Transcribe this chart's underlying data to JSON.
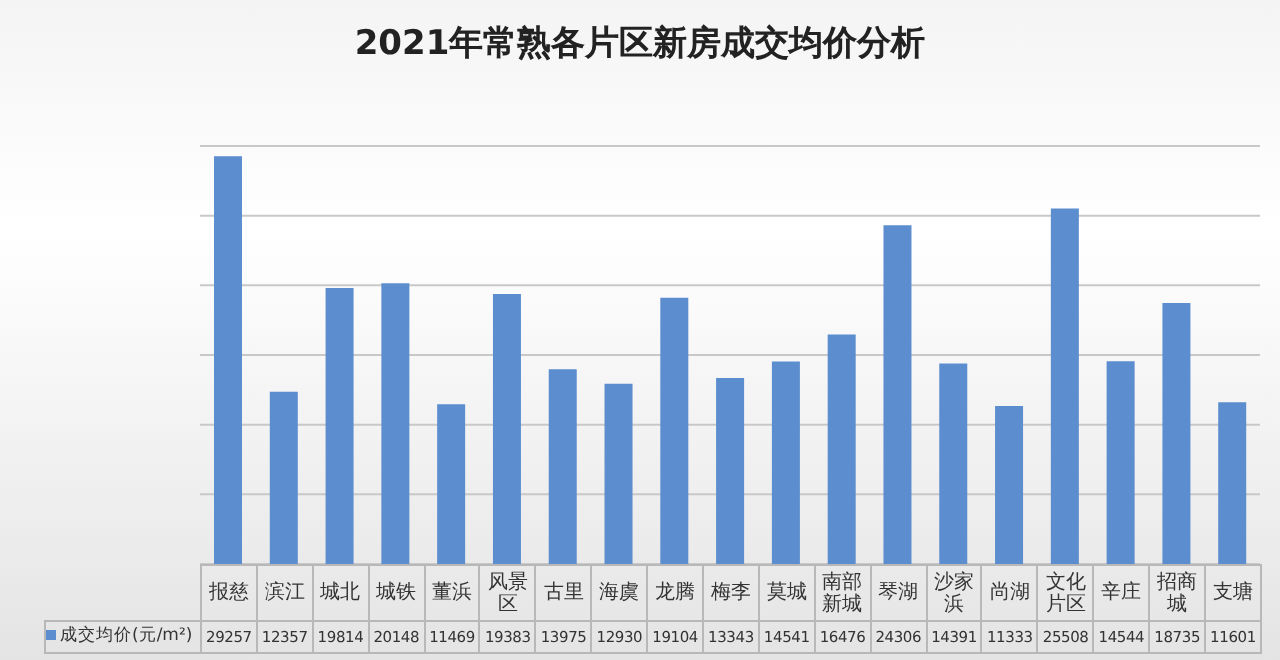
{
  "chart_data": {
    "type": "bar",
    "title": "2021年常熟各片区新房成交均价分析",
    "categories": [
      "报慈",
      "滨江",
      "城北",
      "城铁",
      "董浜",
      "风景区",
      "古里",
      "海虞",
      "龙腾",
      "梅李",
      "莫城",
      "南部新城",
      "琴湖",
      "沙家浜",
      "尚湖",
      "文化片区",
      "辛庄",
      "招商城",
      "支塘"
    ],
    "series": [
      {
        "name": "成交均价(元/m²)",
        "color": "#5b8dcf",
        "values": [
          29257,
          12357,
          19814,
          20148,
          11469,
          19383,
          13975,
          12930,
          19104,
          13343,
          14541,
          16476,
          24306,
          14391,
          11333,
          25508,
          14544,
          18735,
          11601
        ]
      }
    ],
    "grid": "y",
    "legend": "bottom left",
    "data_labels": true
  }
}
